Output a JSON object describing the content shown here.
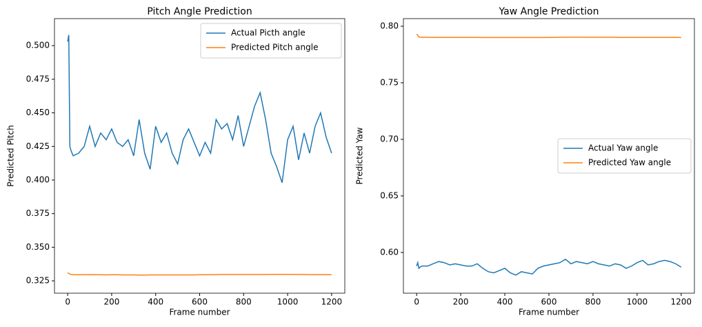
{
  "chart_data": [
    {
      "type": "line",
      "title": "Pitch Angle Prediction",
      "x_label": "Frame number",
      "y_label": "Predicted Pitch",
      "x": [
        0,
        5,
        10,
        15,
        25,
        50,
        75,
        100,
        125,
        150,
        175,
        200,
        225,
        250,
        275,
        300,
        325,
        350,
        375,
        400,
        425,
        450,
        475,
        500,
        525,
        550,
        575,
        600,
        625,
        650,
        675,
        700,
        725,
        750,
        775,
        800,
        825,
        850,
        875,
        900,
        925,
        950,
        975,
        1000,
        1025,
        1050,
        1075,
        1100,
        1125,
        1150,
        1175,
        1200
      ],
      "series": [
        {
          "name": "Actual Picth angle",
          "color": "#1f77b4",
          "values": [
            0.503,
            0.508,
            0.425,
            0.422,
            0.418,
            0.42,
            0.425,
            0.44,
            0.425,
            0.435,
            0.43,
            0.438,
            0.428,
            0.425,
            0.43,
            0.418,
            0.445,
            0.42,
            0.408,
            0.44,
            0.428,
            0.435,
            0.42,
            0.412,
            0.43,
            0.438,
            0.428,
            0.418,
            0.428,
            0.42,
            0.445,
            0.438,
            0.442,
            0.43,
            0.448,
            0.425,
            0.44,
            0.455,
            0.465,
            0.445,
            0.42,
            0.41,
            0.398,
            0.43,
            0.44,
            0.415,
            0.435,
            0.42,
            0.44,
            0.45,
            0.432,
            0.42
          ]
        },
        {
          "name": "Predicted Pitch angle",
          "color": "#ff7f0e",
          "values": [
            0.331,
            0.3305,
            0.33,
            0.3298,
            0.3296,
            0.3295,
            0.3295,
            0.3296,
            0.3295,
            0.3295,
            0.3294,
            0.3295,
            0.3295,
            0.3294,
            0.3294,
            0.3294,
            0.3293,
            0.3293,
            0.3294,
            0.3294,
            0.3294,
            0.3294,
            0.3294,
            0.3294,
            0.3294,
            0.3294,
            0.3294,
            0.3295,
            0.3295,
            0.3295,
            0.3296,
            0.3297,
            0.3297,
            0.3297,
            0.3297,
            0.3297,
            0.3297,
            0.3297,
            0.3297,
            0.3297,
            0.3298,
            0.3298,
            0.3298,
            0.3298,
            0.3298,
            0.3297,
            0.3297,
            0.3296,
            0.3296,
            0.3296,
            0.3296,
            0.3296
          ]
        }
      ],
      "xlim": [
        -60,
        1260
      ],
      "xticks": [
        0,
        200,
        400,
        600,
        800,
        1000,
        1200
      ],
      "ylim": [
        0.3158,
        0.5201
      ],
      "yticks": [
        0.325,
        {
          "value": 0.35,
          "label": "0.350"
        },
        0.375,
        {
          "value": 0.4,
          "label": "0.400"
        },
        0.425,
        {
          "value": 0.45,
          "label": "0.450"
        },
        0.475,
        {
          "value": 0.5,
          "label": "0.500"
        }
      ],
      "legend": "upper right"
    },
    {
      "type": "line",
      "title": "Yaw Angle Prediction",
      "x_label": "Frame number",
      "y_label": "Predicted Yaw",
      "x": [
        0,
        5,
        10,
        15,
        25,
        50,
        75,
        100,
        125,
        150,
        175,
        200,
        225,
        250,
        275,
        300,
        325,
        350,
        375,
        400,
        425,
        450,
        475,
        500,
        525,
        550,
        575,
        600,
        625,
        650,
        675,
        700,
        725,
        750,
        775,
        800,
        825,
        850,
        875,
        900,
        925,
        950,
        975,
        1000,
        1025,
        1050,
        1075,
        1100,
        1125,
        1150,
        1175,
        1200
      ],
      "series": [
        {
          "name": "Actual Yaw angle",
          "color": "#1f77b4",
          "values": [
            0.588,
            0.591,
            0.586,
            0.587,
            0.588,
            0.588,
            0.59,
            0.592,
            0.591,
            0.589,
            0.59,
            0.589,
            0.588,
            0.588,
            0.59,
            0.586,
            0.583,
            0.582,
            0.584,
            0.586,
            0.582,
            0.58,
            0.583,
            0.582,
            0.581,
            0.586,
            0.588,
            0.589,
            0.59,
            0.591,
            0.594,
            0.59,
            0.592,
            0.591,
            0.59,
            0.592,
            0.59,
            0.589,
            0.588,
            0.59,
            0.589,
            0.586,
            0.588,
            0.591,
            0.593,
            0.589,
            0.59,
            0.592,
            0.593,
            0.592,
            0.59,
            0.587
          ]
        },
        {
          "name": "Predicted Yaw angle",
          "color": "#ff7f0e",
          "values": [
            0.793,
            0.792,
            0.7905,
            0.7903,
            0.7902,
            0.7902,
            0.7901,
            0.7901,
            0.7901,
            0.7901,
            0.7901,
            0.7901,
            0.7901,
            0.7901,
            0.7901,
            0.79,
            0.79,
            0.79,
            0.79,
            0.79,
            0.79,
            0.79,
            0.79,
            0.79,
            0.79,
            0.79,
            0.79,
            0.7901,
            0.7901,
            0.7902,
            0.7902,
            0.7903,
            0.7903,
            0.7903,
            0.7902,
            0.7902,
            0.7902,
            0.7902,
            0.7902,
            0.7902,
            0.7901,
            0.7901,
            0.7901,
            0.7901,
            0.7901,
            0.7901,
            0.7901,
            0.7901,
            0.7901,
            0.7901,
            0.7901,
            0.79
          ]
        }
      ],
      "xlim": [
        -60,
        1260
      ],
      "xticks": [
        0,
        200,
        400,
        600,
        800,
        1000,
        1200
      ],
      "ylim": [
        0.564,
        0.8067
      ],
      "yticks": [
        {
          "value": 0.6,
          "label": "0.60"
        },
        0.65,
        {
          "value": 0.7,
          "label": "0.70"
        },
        0.75,
        {
          "value": 0.8,
          "label": "0.80"
        }
      ],
      "legend": "center right"
    }
  ]
}
